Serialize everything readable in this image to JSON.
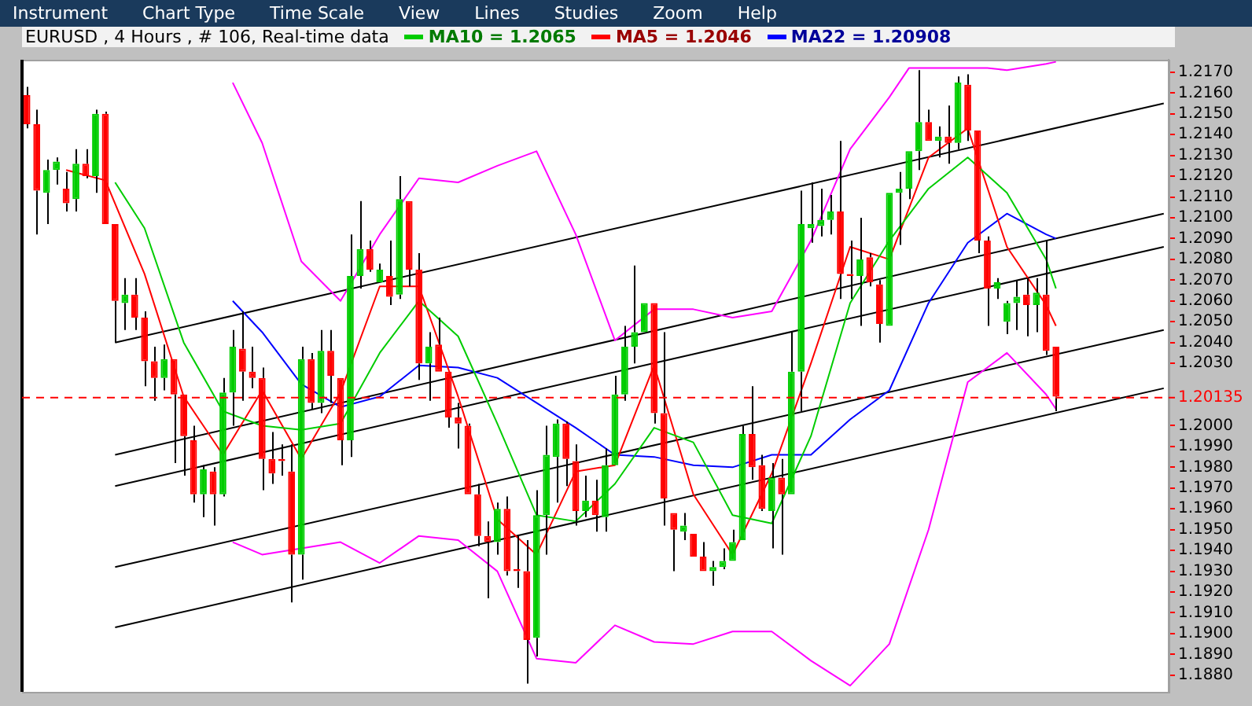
{
  "chart_data": {
    "type": "candlestick",
    "title": "EURUSD , 4 Hours , # 106, Real-time data",
    "annotations": [
      "Instrument",
      "Chart Type",
      "Time Scale",
      "View",
      "Lines",
      "Studies",
      "Zoom",
      "Help"
    ],
    "categories": [
      null,
      null,
      null,
      null,
      null,
      null,
      null,
      null,
      null,
      null,
      null,
      null,
      null,
      null,
      null,
      null,
      null,
      null,
      null,
      null,
      null,
      null,
      null,
      null,
      null,
      null,
      null,
      null,
      null,
      null,
      null,
      null,
      null,
      null,
      null,
      null,
      null,
      null,
      null,
      null,
      null,
      null,
      null,
      null,
      null,
      null,
      null,
      null,
      null,
      null,
      null,
      null,
      null,
      null,
      null,
      null,
      null,
      null,
      null,
      null,
      null,
      null,
      null,
      null,
      null,
      null,
      null,
      null,
      null,
      null,
      null,
      null,
      null,
      null,
      null,
      null,
      null,
      null,
      null,
      null,
      null,
      null,
      null,
      null,
      null,
      null,
      null,
      null,
      null,
      null,
      null,
      null,
      null,
      null,
      null,
      null,
      null,
      null,
      null,
      null,
      null,
      null,
      null,
      null,
      null,
      null,
      null,
      null,
      null,
      null,
      null,
      null,
      null,
      null,
      null,
      null,
      null
    ],
    "ohlc": [
      [
        1.2159,
        1.2163,
        1.2143,
        1.2145
      ],
      [
        1.2145,
        1.2152,
        1.2092,
        1.2113
      ],
      [
        1.2112,
        1.2128,
        1.2097,
        1.2123
      ],
      [
        1.2123,
        1.2129,
        1.2116,
        1.2127
      ],
      [
        1.2114,
        1.2122,
        1.2103,
        1.2107
      ],
      [
        1.2109,
        1.2133,
        1.2103,
        1.2126
      ],
      [
        1.2126,
        1.2133,
        1.2119,
        1.212
      ],
      [
        1.212,
        1.2152,
        1.2112,
        1.215
      ],
      [
        1.215,
        1.2151,
        1.2097,
        1.2097
      ],
      [
        1.2097,
        1.2097,
        1.204,
        1.206
      ],
      [
        1.2059,
        1.2071,
        1.2046,
        1.2063
      ],
      [
        1.2063,
        1.2071,
        1.2046,
        1.2052
      ],
      [
        1.2052,
        1.2055,
        1.2019,
        1.2031
      ],
      [
        1.2031,
        1.2038,
        1.2012,
        1.2023
      ],
      [
        1.2023,
        1.2039,
        1.2017,
        1.2032
      ],
      [
        1.2032,
        1.2032,
        1.1982,
        1.2015
      ],
      [
        1.2015,
        1.2015,
        1.1976,
        1.1995
      ],
      [
        1.1993,
        1.2,
        1.1963,
        1.1967
      ],
      [
        1.1967,
        1.1981,
        1.1956,
        1.1979
      ],
      [
        1.1978,
        1.198,
        1.1952,
        1.1967
      ],
      [
        1.1967,
        1.2023,
        1.1966,
        1.2016
      ],
      [
        1.2016,
        1.2046,
        1.2,
        1.2038
      ],
      [
        1.2037,
        1.2055,
        1.2012,
        1.2026
      ],
      [
        1.2026,
        1.2038,
        1.2018,
        1.2023
      ],
      [
        1.2023,
        1.2028,
        1.1969,
        1.1984
      ],
      [
        1.1984,
        1.1997,
        1.1972,
        1.1977
      ],
      [
        1.1984,
        1.1991,
        1.1976,
        1.1983
      ],
      [
        1.1978,
        1.1991,
        1.1915,
        1.1938
      ],
      [
        1.1938,
        1.2038,
        1.1926,
        1.2032
      ],
      [
        1.2032,
        1.2035,
        1.2008,
        1.2011
      ],
      [
        1.2011,
        1.2046,
        1.2006,
        1.2036
      ],
      [
        1.2036,
        1.2046,
        1.2011,
        1.2024
      ],
      [
        1.2023,
        1.2023,
        1.1981,
        1.1993
      ],
      [
        1.1993,
        1.2092,
        1.1985,
        1.2072
      ],
      [
        1.2072,
        1.2108,
        1.2066,
        1.2085
      ],
      [
        1.2085,
        1.2089,
        1.2074,
        1.2075
      ],
      [
        1.2069,
        1.2078,
        1.2069,
        1.2075
      ],
      [
        1.2072,
        1.2089,
        1.2058,
        1.2062
      ],
      [
        1.2063,
        1.212,
        1.2061,
        1.2109
      ],
      [
        1.2108,
        1.2108,
        1.2067,
        1.2075
      ],
      [
        1.2075,
        1.2083,
        1.2022,
        1.203
      ],
      [
        1.203,
        1.2045,
        1.2012,
        1.2038
      ],
      [
        1.2039,
        1.2052,
        1.2026,
        1.2026
      ],
      [
        1.2026,
        1.2026,
        1.1999,
        1.2004
      ],
      [
        1.2004,
        1.2011,
        1.1989,
        1.2001
      ],
      [
        1.2,
        1.2001,
        1.1967,
        1.1967
      ],
      [
        1.1967,
        1.1972,
        1.1942,
        1.1947
      ],
      [
        1.1947,
        1.1954,
        1.1917,
        1.1944
      ],
      [
        1.1944,
        1.1963,
        1.1938,
        1.196
      ],
      [
        1.196,
        1.1966,
        1.1928,
        1.193
      ],
      [
        1.1931,
        1.1947,
        1.1922,
        1.193
      ],
      [
        1.193,
        1.1945,
        1.1876,
        1.1897
      ],
      [
        1.1898,
        1.1969,
        1.1889,
        1.1957
      ],
      [
        1.1957,
        1.2,
        1.1938,
        1.1986
      ],
      [
        1.1985,
        1.2003,
        1.1963,
        1.2001
      ],
      [
        1.2001,
        1.2002,
        1.1971,
        1.1984
      ],
      [
        1.1983,
        1.1991,
        1.1952,
        1.1959
      ],
      [
        1.1959,
        1.1976,
        1.1956,
        1.1964
      ],
      [
        1.1964,
        1.1974,
        1.1949,
        1.1957
      ],
      [
        1.1956,
        1.1989,
        1.1949,
        1.1981
      ],
      [
        1.1981,
        1.2024,
        1.1981,
        1.2015
      ],
      [
        1.2015,
        1.2048,
        1.2012,
        1.2038
      ],
      [
        1.2038,
        1.2077,
        1.203,
        1.2045
      ],
      [
        1.2045,
        1.2059,
        1.2045,
        1.2059
      ],
      [
        1.2059,
        1.2059,
        1.2001,
        1.2006
      ],
      [
        1.2006,
        1.2045,
        1.1952,
        1.1965
      ],
      [
        1.1958,
        1.1958,
        1.193,
        1.195
      ],
      [
        1.1949,
        1.1958,
        1.1945,
        1.1952
      ],
      [
        1.1948,
        1.1948,
        1.1937,
        1.1937
      ],
      [
        1.1937,
        1.1944,
        1.193,
        1.193
      ],
      [
        1.193,
        1.1935,
        1.1923,
        1.1932
      ],
      [
        1.1932,
        1.1941,
        1.1931,
        1.1935
      ],
      [
        1.1935,
        1.195,
        1.1935,
        1.1944
      ],
      [
        1.1945,
        1.2,
        1.1945,
        1.1996
      ],
      [
        1.1996,
        1.2019,
        1.1974,
        1.198
      ],
      [
        1.1981,
        1.1986,
        1.1959,
        1.196
      ],
      [
        1.1959,
        1.1982,
        1.1941,
        1.1975
      ],
      [
        1.1975,
        1.1984,
        1.1938,
        1.1967
      ],
      [
        1.1967,
        1.2045,
        1.1967,
        1.2026
      ],
      [
        1.2026,
        1.2113,
        1.2007,
        1.2097
      ],
      [
        1.2095,
        1.2117,
        1.2088,
        1.2097
      ],
      [
        1.2096,
        1.2114,
        1.2091,
        1.2099
      ],
      [
        1.2099,
        1.2111,
        1.2092,
        1.2103
      ],
      [
        1.2103,
        1.2137,
        1.2061,
        1.2073
      ],
      [
        1.2073,
        1.2089,
        1.2061,
        1.2072
      ],
      [
        1.2072,
        1.21,
        1.2048,
        1.208
      ],
      [
        1.2081,
        1.2083,
        1.2067,
        1.2069
      ],
      [
        1.2068,
        1.207,
        1.204,
        1.2049
      ],
      [
        1.2048,
        1.2112,
        1.2048,
        1.2112
      ],
      [
        1.2112,
        1.2122,
        1.2087,
        1.2114
      ],
      [
        1.2114,
        1.2132,
        1.2109,
        1.2132
      ],
      [
        1.2132,
        1.2171,
        1.2123,
        1.2146
      ],
      [
        1.2146,
        1.2152,
        1.2137,
        1.2137
      ],
      [
        1.2137,
        1.2144,
        1.2129,
        1.2139
      ],
      [
        1.2139,
        1.2154,
        1.2126,
        1.2136
      ],
      [
        1.2136,
        1.2168,
        1.2133,
        1.2165
      ],
      [
        1.2164,
        1.2169,
        1.2137,
        1.2142
      ],
      [
        1.2142,
        1.2142,
        1.2083,
        1.2089
      ],
      [
        1.2089,
        1.2091,
        1.2048,
        1.2066
      ],
      [
        1.2066,
        1.2071,
        1.2061,
        1.2069
      ],
      [
        1.205,
        1.206,
        1.2044,
        1.2059
      ],
      [
        1.2059,
        1.207,
        1.2046,
        1.2062
      ],
      [
        1.2063,
        1.2071,
        1.2043,
        1.2058
      ],
      [
        1.2058,
        1.2071,
        1.2045,
        1.2064
      ],
      [
        1.2063,
        1.2089,
        1.2034,
        1.2036
      ],
      [
        1.2038,
        1.2038,
        1.2007,
        1.2014
      ],
      null,
      null,
      null,
      null,
      null,
      null,
      null,
      null,
      null,
      null,
      null
    ],
    "colors": [
      "#ff0000",
      "#ff0000",
      "#00cc00",
      "#00cc00",
      "#ff0000",
      "#00cc00",
      "#ff0000",
      "#00cc00",
      "#ff0000",
      "#ff0000",
      "#00cc00",
      "#ff0000",
      "#ff0000",
      "#ff0000",
      "#00cc00",
      "#ff0000",
      "#ff0000",
      "#ff0000",
      "#00cc00",
      "#ff0000",
      "#00cc00",
      "#00cc00",
      "#ff0000",
      "#ff0000",
      "#ff0000",
      "#ff0000",
      "#ff0000",
      "#ff0000",
      "#00cc00",
      "#ff0000",
      "#00cc00",
      "#ff0000",
      "#ff0000",
      "#00cc00",
      "#00cc00",
      "#ff0000",
      "#00cc00",
      "#ff0000",
      "#00cc00",
      "#ff0000",
      "#ff0000",
      "#00cc00",
      "#ff0000",
      "#ff0000",
      "#ff0000",
      "#ff0000",
      "#ff0000",
      "#ff0000",
      "#00cc00",
      "#ff0000",
      "#ff0000",
      "#ff0000",
      "#00cc00",
      "#00cc00",
      "#00cc00",
      "#ff0000",
      "#ff0000",
      "#00cc00",
      "#ff0000",
      "#00cc00",
      "#00cc00",
      "#00cc00",
      "#00cc00",
      "#00cc00",
      "#ff0000",
      "#ff0000",
      "#ff0000",
      "#00cc00",
      "#ff0000",
      "#ff0000",
      "#00cc00",
      "#00cc00",
      "#00cc00",
      "#00cc00",
      "#ff0000",
      "#ff0000",
      "#00cc00",
      "#ff0000",
      "#00cc00",
      "#00cc00",
      "#00cc00",
      "#00cc00",
      "#00cc00",
      "#ff0000",
      "#ff0000",
      "#00cc00",
      "#ff0000",
      "#ff0000",
      "#00cc00",
      "#00cc00",
      "#00cc00",
      "#00cc00",
      "#ff0000",
      "#00cc00",
      "#ff0000",
      "#00cc00",
      "#ff0000",
      "#ff0000",
      "#ff0000",
      "#00cc00",
      "#00cc00",
      "#00cc00",
      "#ff0000",
      "#00cc00",
      "#ff0000",
      "#ff0000",
      null,
      null,
      null,
      null,
      null,
      null,
      null,
      null,
      null,
      null,
      null
    ],
    "series": [
      {
        "type": "line",
        "name": "MA10 = 1.2065",
        "color": "#00cc00",
        "values": [
          null,
          null,
          null,
          null,
          null,
          null,
          null,
          null,
          null,
          1.2117,
          null,
          null,
          1.2095,
          null,
          null,
          null,
          1.204,
          null,
          null,
          null,
          1.2007,
          null,
          null,
          null,
          1.2,
          null,
          null,
          null,
          1.1998,
          null,
          null,
          null,
          1.2001,
          null,
          null,
          null,
          1.2035,
          null,
          null,
          null,
          1.206,
          null,
          null,
          null,
          1.2043,
          null,
          null,
          null,
          1.2001,
          null,
          null,
          null,
          1.1957,
          null,
          null,
          null,
          1.1954,
          null,
          null,
          null,
          1.1972,
          null,
          null,
          null,
          1.1999,
          null,
          null,
          null,
          1.1992,
          null,
          null,
          null,
          1.1957,
          null,
          null,
          null,
          1.1953,
          null,
          null,
          null,
          1.1995,
          null,
          null,
          null,
          1.2059,
          null,
          null,
          null,
          1.2089,
          null,
          null,
          null,
          1.2114,
          null,
          null,
          null,
          1.2129,
          null,
          null,
          null,
          1.2112,
          null,
          null,
          null,
          1.208,
          1.2066,
          null,
          null,
          null,
          null,
          null,
          null,
          null,
          null,
          null,
          null,
          null
        ]
      },
      {
        "type": "line",
        "name": "MA5 = 1.2046",
        "color": "#ff0000",
        "values": [
          null,
          null,
          null,
          null,
          1.2123,
          null,
          null,
          null,
          1.2118,
          null,
          null,
          null,
          1.2073,
          null,
          null,
          null,
          1.2014,
          null,
          null,
          null,
          1.1986,
          null,
          null,
          null,
          1.2017,
          null,
          null,
          null,
          1.1984,
          null,
          null,
          null,
          1.2016,
          null,
          null,
          null,
          1.2067,
          null,
          null,
          null,
          1.2067,
          null,
          null,
          null,
          1.2014,
          null,
          null,
          null,
          1.1955,
          null,
          null,
          null,
          1.1938,
          null,
          null,
          null,
          1.1978,
          null,
          null,
          null,
          1.1981,
          null,
          null,
          null,
          1.2029,
          null,
          null,
          null,
          1.1967,
          null,
          null,
          null,
          1.1938,
          null,
          null,
          null,
          1.1977,
          null,
          null,
          null,
          1.203,
          null,
          null,
          null,
          1.2086,
          null,
          null,
          null,
          1.208,
          null,
          null,
          null,
          1.2129,
          null,
          null,
          null,
          1.2143,
          null,
          null,
          null,
          1.2086,
          null,
          null,
          null,
          1.2058,
          1.2048,
          null,
          null,
          null,
          null,
          null,
          null,
          null,
          null,
          null,
          null,
          null
        ]
      },
      {
        "type": "line",
        "name": "MA22 = 1.20908",
        "color": "#0000ff",
        "values": [
          null,
          null,
          null,
          null,
          null,
          null,
          null,
          null,
          null,
          null,
          null,
          null,
          null,
          null,
          null,
          null,
          null,
          null,
          null,
          null,
          null,
          1.206,
          null,
          null,
          1.2045,
          null,
          null,
          null,
          1.202,
          null,
          null,
          null,
          1.2009,
          null,
          null,
          null,
          1.2014,
          null,
          null,
          null,
          1.2029,
          null,
          null,
          null,
          1.2028,
          null,
          null,
          null,
          1.2023,
          null,
          null,
          null,
          1.2011,
          null,
          null,
          null,
          1.1999,
          null,
          null,
          null,
          1.1986,
          null,
          null,
          null,
          1.1985,
          null,
          null,
          null,
          1.1981,
          null,
          null,
          null,
          1.198,
          null,
          null,
          null,
          1.1986,
          null,
          null,
          null,
          1.1986,
          null,
          null,
          null,
          1.2003,
          null,
          null,
          null,
          1.2017,
          null,
          null,
          null,
          1.2059,
          null,
          null,
          null,
          1.2088,
          null,
          null,
          null,
          1.2102,
          null,
          null,
          null,
          1.2092,
          1.209,
          null,
          null,
          null,
          null,
          null,
          null,
          null,
          null,
          null,
          null,
          null
        ]
      },
      {
        "type": "line",
        "color": "#ff00ff",
        "values": [
          null,
          null,
          null,
          null,
          null,
          null,
          null,
          null,
          null,
          null,
          null,
          null,
          null,
          null,
          null,
          null,
          null,
          null,
          null,
          null,
          null,
          1.2165,
          null,
          null,
          1.2136,
          null,
          null,
          null,
          1.2079,
          null,
          null,
          null,
          1.206,
          null,
          null,
          null,
          1.2092,
          null,
          null,
          null,
          1.2119,
          null,
          null,
          null,
          1.2117,
          null,
          null,
          null,
          1.2125,
          null,
          null,
          null,
          1.2132,
          null,
          null,
          null,
          1.2092,
          null,
          null,
          null,
          1.2041,
          null,
          null,
          null,
          1.2056,
          null,
          null,
          null,
          1.2056,
          null,
          null,
          null,
          1.2052,
          null,
          null,
          null,
          1.2055,
          null,
          null,
          null,
          1.2089,
          null,
          null,
          null,
          1.2133,
          null,
          null,
          null,
          1.2158,
          null,
          1.2172,
          null,
          null,
          null,
          null,
          null,
          null,
          null,
          1.2172,
          null,
          1.2171,
          null,
          null,
          null,
          1.2174,
          1.2175,
          null,
          null,
          null,
          null,
          null,
          null,
          null,
          null,
          null,
          null,
          null
        ]
      },
      {
        "type": "line",
        "color": "#ff00ff",
        "values": [
          null,
          null,
          null,
          null,
          null,
          null,
          null,
          null,
          null,
          null,
          null,
          null,
          null,
          null,
          null,
          null,
          null,
          null,
          null,
          null,
          null,
          1.1944,
          null,
          null,
          1.1938,
          null,
          null,
          null,
          1.1941,
          null,
          null,
          null,
          1.1944,
          null,
          null,
          null,
          1.1934,
          null,
          null,
          null,
          1.1947,
          null,
          null,
          null,
          1.1945,
          null,
          null,
          null,
          1.193,
          null,
          null,
          null,
          1.1888,
          null,
          null,
          null,
          1.1886,
          null,
          null,
          null,
          1.1904,
          null,
          null,
          null,
          1.1896,
          null,
          null,
          null,
          1.1895,
          null,
          null,
          null,
          1.1901,
          null,
          null,
          null,
          1.1901,
          null,
          null,
          null,
          1.1887,
          null,
          null,
          null,
          1.1875,
          null,
          null,
          null,
          1.1895,
          null,
          null,
          null,
          1.195,
          null,
          null,
          null,
          1.2021,
          null,
          null,
          null,
          1.2035,
          null,
          null,
          null,
          1.2015,
          1.2008,
          null,
          null,
          null,
          null,
          null,
          null,
          null,
          null,
          null,
          null,
          null
        ]
      },
      {
        "type": "line",
        "color": "#000000",
        "values": [
          null,
          null,
          null,
          null,
          null,
          null,
          null,
          null,
          null,
          1.204,
          null,
          null,
          null,
          null,
          null,
          null,
          null,
          null,
          null,
          null,
          null,
          null,
          null,
          null,
          null,
          null,
          null,
          null,
          null,
          null,
          null,
          null,
          null,
          null,
          null,
          null,
          null,
          null,
          null,
          null,
          null,
          null,
          null,
          null,
          null,
          null,
          null,
          null,
          null,
          null,
          null,
          null,
          null,
          null,
          null,
          null,
          null,
          null,
          null,
          null,
          null,
          null,
          null,
          null,
          null,
          null,
          null,
          null,
          null,
          null,
          null,
          null,
          null,
          null,
          null,
          null,
          null,
          null,
          null,
          null,
          null,
          null,
          null,
          null,
          null,
          null,
          null,
          null,
          null,
          null,
          null,
          null,
          null,
          null,
          null,
          null,
          null,
          null,
          null,
          null,
          null,
          null,
          null,
          null,
          null,
          null,
          null,
          null,
          null,
          null,
          null,
          null,
          null,
          null,
          null,
          null,
          1.2155
        ]
      },
      {
        "type": "line",
        "color": "#000000",
        "values": [
          null,
          null,
          null,
          null,
          null,
          null,
          null,
          null,
          null,
          1.1986,
          null,
          null,
          null,
          null,
          null,
          null,
          null,
          null,
          null,
          null,
          null,
          null,
          null,
          null,
          null,
          null,
          null,
          null,
          null,
          null,
          null,
          null,
          null,
          null,
          null,
          null,
          null,
          null,
          null,
          null,
          null,
          null,
          null,
          null,
          null,
          null,
          null,
          null,
          null,
          null,
          null,
          null,
          null,
          null,
          null,
          null,
          null,
          null,
          null,
          null,
          null,
          null,
          null,
          null,
          null,
          null,
          null,
          null,
          null,
          null,
          null,
          null,
          null,
          null,
          null,
          null,
          null,
          null,
          null,
          null,
          null,
          null,
          null,
          null,
          null,
          null,
          null,
          null,
          null,
          null,
          null,
          null,
          null,
          null,
          null,
          null,
          null,
          null,
          null,
          null,
          null,
          null,
          null,
          null,
          null,
          null,
          null,
          null,
          null,
          null,
          null,
          null,
          null,
          null,
          null,
          null,
          1.2102
        ]
      },
      {
        "type": "line",
        "color": "#000000",
        "values": [
          null,
          null,
          null,
          null,
          null,
          null,
          null,
          null,
          null,
          1.1971,
          null,
          null,
          null,
          null,
          null,
          null,
          null,
          null,
          null,
          null,
          null,
          null,
          null,
          null,
          null,
          null,
          null,
          null,
          null,
          null,
          null,
          null,
          null,
          null,
          null,
          null,
          null,
          null,
          null,
          null,
          null,
          null,
          null,
          null,
          null,
          null,
          null,
          null,
          null,
          null,
          null,
          null,
          null,
          null,
          null,
          null,
          null,
          null,
          null,
          null,
          null,
          null,
          null,
          null,
          null,
          null,
          null,
          null,
          null,
          null,
          null,
          null,
          null,
          null,
          null,
          null,
          null,
          null,
          null,
          null,
          null,
          null,
          null,
          null,
          null,
          null,
          null,
          null,
          null,
          null,
          null,
          null,
          null,
          null,
          null,
          null,
          null,
          null,
          null,
          null,
          null,
          null,
          null,
          null,
          null,
          null,
          null,
          null,
          null,
          null,
          null,
          null,
          null,
          null,
          null,
          null,
          1.2086
        ]
      },
      {
        "type": "line",
        "color": "#000000",
        "values": [
          null,
          null,
          null,
          null,
          null,
          null,
          null,
          null,
          null,
          1.1932,
          null,
          null,
          null,
          null,
          null,
          null,
          null,
          null,
          null,
          null,
          null,
          null,
          null,
          null,
          null,
          null,
          null,
          null,
          null,
          null,
          null,
          null,
          null,
          null,
          null,
          null,
          null,
          null,
          null,
          null,
          null,
          null,
          null,
          null,
          null,
          null,
          null,
          null,
          null,
          null,
          null,
          null,
          null,
          null,
          null,
          null,
          null,
          null,
          null,
          null,
          null,
          null,
          null,
          null,
          null,
          null,
          null,
          null,
          null,
          null,
          null,
          null,
          null,
          null,
          null,
          null,
          null,
          null,
          null,
          null,
          null,
          null,
          null,
          null,
          null,
          null,
          null,
          null,
          null,
          null,
          null,
          null,
          null,
          null,
          null,
          null,
          null,
          null,
          null,
          null,
          null,
          null,
          null,
          null,
          null,
          null,
          null,
          null,
          null,
          null,
          null,
          null,
          null,
          null,
          null,
          null,
          1.2046
        ]
      },
      {
        "type": "line",
        "color": "#000000",
        "values": [
          null,
          null,
          null,
          null,
          null,
          null,
          null,
          null,
          null,
          1.1903,
          null,
          null,
          null,
          null,
          null,
          null,
          null,
          null,
          null,
          null,
          null,
          null,
          null,
          null,
          null,
          null,
          null,
          null,
          null,
          null,
          null,
          null,
          null,
          null,
          null,
          null,
          null,
          null,
          null,
          null,
          null,
          null,
          null,
          null,
          null,
          null,
          null,
          null,
          null,
          null,
          null,
          null,
          null,
          null,
          null,
          null,
          null,
          null,
          null,
          null,
          null,
          null,
          null,
          null,
          null,
          null,
          null,
          null,
          null,
          null,
          null,
          null,
          null,
          null,
          null,
          null,
          null,
          null,
          null,
          null,
          null,
          null,
          null,
          null,
          null,
          null,
          null,
          null,
          null,
          null,
          null,
          null,
          null,
          null,
          null,
          null,
          null,
          null,
          null,
          null,
          null,
          null,
          null,
          null,
          null,
          null,
          null,
          null,
          null,
          null,
          null,
          null,
          null,
          null,
          null,
          null,
          1.2018
        ]
      }
    ],
    "ylim": [
      1.1872,
      1.2176
    ],
    "yticks": [
      {
        "value": 1.217,
        "label": "1.2170"
      },
      {
        "value": 1.216,
        "label": "1.2160"
      },
      {
        "value": 1.215,
        "label": "1.2150"
      },
      {
        "value": 1.214,
        "label": "1.2140"
      },
      {
        "value": 1.213,
        "label": "1.2130"
      },
      {
        "value": 1.212,
        "label": "1.2120"
      },
      {
        "value": 1.211,
        "label": "1.2110"
      },
      {
        "value": 1.21,
        "label": "1.2100"
      },
      {
        "value": 1.209,
        "label": "1.2090"
      },
      {
        "value": 1.208,
        "label": "1.2080"
      },
      {
        "value": 1.207,
        "label": "1.2070"
      },
      {
        "value": 1.206,
        "label": "1.2060"
      },
      {
        "value": 1.205,
        "label": "1.2050"
      },
      {
        "value": 1.204,
        "label": "1.2040"
      },
      {
        "value": 1.203,
        "label": "1.2030"
      },
      {
        "value": 1.2,
        "label": "1.2000"
      },
      {
        "value": 1.199,
        "label": "1.1990"
      },
      {
        "value": 1.198,
        "label": "1.1980"
      },
      {
        "value": 1.197,
        "label": "1.1970"
      },
      {
        "value": 1.196,
        "label": "1.1960"
      },
      {
        "value": 1.195,
        "label": "1.1950"
      },
      {
        "value": 1.194,
        "label": "1.1940"
      },
      {
        "value": 1.193,
        "label": "1.1930"
      },
      {
        "value": 1.192,
        "label": "1.1920"
      },
      {
        "value": 1.191,
        "label": "1.1910"
      },
      {
        "value": 1.19,
        "label": "1.1900"
      },
      {
        "value": 1.189,
        "label": "1.1890"
      },
      {
        "value": 1.188,
        "label": "1.1880"
      }
    ],
    "ref_lines": [
      {
        "axis": "y",
        "value": 1.20135,
        "label": "1.20135",
        "color": "#ff0000",
        "line_style": "dashed"
      }
    ],
    "grid": false,
    "legend": "top",
    "marker": "none",
    "tick_labels": "y"
  }
}
